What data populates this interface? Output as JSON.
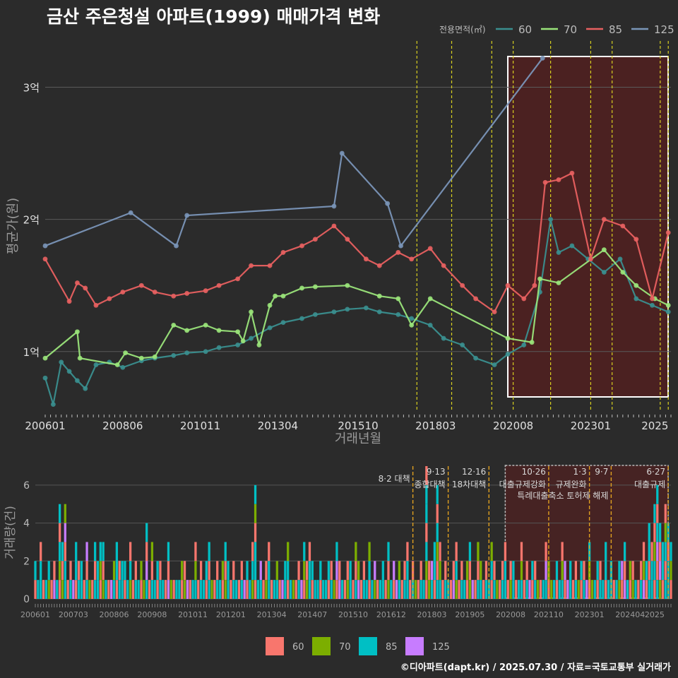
{
  "chart_data": [
    {
      "type": "line",
      "title": "금산 주은청설 아파트(1999) 매매가격 변화",
      "xlabel": "거래년월",
      "ylabel": "평균가(원)",
      "x_ticks": [
        "200601",
        "200806",
        "201011",
        "201304",
        "201510",
        "201803",
        "202008",
        "202301",
        "2025"
      ],
      "y_ticks": [
        "1억",
        "2억",
        "3억"
      ],
      "y_tick_values": [
        1.0,
        2.0,
        3.0
      ],
      "xlim": [
        "2006-01",
        "2025-07"
      ],
      "ylim": [
        0.55,
        3.35
      ],
      "y_unit": "억",
      "legend": {
        "title": "전용면적(㎡)",
        "position": "top-right",
        "entries": [
          "60",
          "70",
          "85",
          "125"
        ]
      },
      "series": [
        {
          "name": "60",
          "color": "#3a8f8f",
          "x": [
            "2006-01",
            "2006-04",
            "2006-07",
            "2006-10",
            "2007-01",
            "2007-04",
            "2007-08",
            "2008-01",
            "2008-06",
            "2009-01",
            "2009-06",
            "2010-01",
            "2010-06",
            "2011-01",
            "2011-06",
            "2012-01",
            "2012-06",
            "2013-01",
            "2013-06",
            "2014-01",
            "2014-06",
            "2015-01",
            "2015-06",
            "2016-01",
            "2016-06",
            "2017-01",
            "2017-06",
            "2018-01",
            "2018-06",
            "2019-01",
            "2019-06",
            "2020-01",
            "2020-06",
            "2020-12",
            "2021-06",
            "2021-10",
            "2022-01",
            "2022-06",
            "2022-12",
            "2023-06",
            "2023-12",
            "2024-06",
            "2024-12",
            "2025-06"
          ],
          "y": [
            0.8,
            0.6,
            0.92,
            0.85,
            0.78,
            0.72,
            0.9,
            0.92,
            0.88,
            0.93,
            0.95,
            0.97,
            0.99,
            1.0,
            1.03,
            1.05,
            1.1,
            1.18,
            1.22,
            1.25,
            1.28,
            1.3,
            1.32,
            1.33,
            1.3,
            1.28,
            1.25,
            1.2,
            1.1,
            1.05,
            0.95,
            0.9,
            0.98,
            1.05,
            1.45,
            2.0,
            1.75,
            1.8,
            1.7,
            1.6,
            1.7,
            1.4,
            1.35,
            1.3
          ]
        },
        {
          "name": "70",
          "color": "#9ae47a",
          "x": [
            "2006-01",
            "2007-01",
            "2007-02",
            "2008-04",
            "2008-07",
            "2009-01",
            "2009-06",
            "2010-01",
            "2010-06",
            "2011-01",
            "2011-06",
            "2012-01",
            "2012-03",
            "2012-06",
            "2012-09",
            "2013-01",
            "2013-03",
            "2013-06",
            "2014-01",
            "2014-06",
            "2015-06",
            "2016-06",
            "2017-01",
            "2017-06",
            "2018-01",
            "2020-06",
            "2021-03",
            "2021-06",
            "2022-01",
            "2023-06",
            "2024-01",
            "2024-06",
            "2025-01",
            "2025-06"
          ],
          "y": [
            0.95,
            1.15,
            0.95,
            0.9,
            0.99,
            0.95,
            0.96,
            1.2,
            1.16,
            1.2,
            1.16,
            1.15,
            1.08,
            1.3,
            1.05,
            1.35,
            1.42,
            1.42,
            1.48,
            1.49,
            1.5,
            1.42,
            1.4,
            1.2,
            1.4,
            1.1,
            1.07,
            1.55,
            1.52,
            1.77,
            1.6,
            1.5,
            1.4,
            1.35
          ]
        },
        {
          "name": "85",
          "color": "#e86060",
          "x": [
            "2006-01",
            "2006-10",
            "2007-01",
            "2007-04",
            "2007-08",
            "2008-01",
            "2008-06",
            "2009-01",
            "2009-06",
            "2010-01",
            "2010-06",
            "2011-01",
            "2011-06",
            "2012-01",
            "2012-06",
            "2013-01",
            "2013-06",
            "2014-01",
            "2014-06",
            "2015-01",
            "2015-06",
            "2016-01",
            "2016-06",
            "2017-01",
            "2017-06",
            "2018-01",
            "2018-06",
            "2019-01",
            "2019-06",
            "2020-01",
            "2020-06",
            "2020-12",
            "2021-04",
            "2021-08",
            "2022-01",
            "2022-06",
            "2023-01",
            "2023-06",
            "2024-01",
            "2024-06",
            "2024-12",
            "2025-06"
          ],
          "y": [
            1.7,
            1.38,
            1.52,
            1.48,
            1.35,
            1.4,
            1.45,
            1.5,
            1.45,
            1.42,
            1.44,
            1.46,
            1.5,
            1.55,
            1.65,
            1.65,
            1.75,
            1.8,
            1.85,
            1.95,
            1.85,
            1.7,
            1.65,
            1.75,
            1.7,
            1.78,
            1.65,
            1.5,
            1.4,
            1.3,
            1.5,
            1.4,
            1.5,
            2.28,
            2.3,
            2.35,
            1.7,
            2.0,
            1.95,
            1.85,
            1.4,
            1.9
          ]
        },
        {
          "name": "125",
          "color": "#7a95b8",
          "x": [
            "2006-01",
            "2008-09",
            "2010-02",
            "2010-06",
            "2015-01",
            "2015-04",
            "2016-09",
            "2017-02",
            "2021-07"
          ],
          "y": [
            1.8,
            2.05,
            1.8,
            2.03,
            2.1,
            2.5,
            2.12,
            1.8,
            3.22
          ]
        }
      ],
      "annotations": {
        "shade": {
          "start": "2020-06",
          "end": "2025-07"
        },
        "events": [
          "2017-08",
          "2018-09",
          "2019-12",
          "2020-08",
          "2021-10",
          "2023-01",
          "2023-09",
          "2025-03",
          "2025-06"
        ]
      }
    },
    {
      "type": "bar",
      "ylabel": "거래량(건)",
      "x_ticks": [
        "200601",
        "200703",
        "200806",
        "200908",
        "201011",
        "201201",
        "201304",
        "201407",
        "201510",
        "201612",
        "201803",
        "201905",
        "202008",
        "202110",
        "202301",
        "202404",
        "2025"
      ],
      "y_ticks": [
        "0",
        "2",
        "4",
        "6"
      ],
      "y_tick_values": [
        0,
        2,
        4,
        6
      ],
      "ylim": [
        0,
        7
      ],
      "legend": {
        "position": "bottom",
        "entries": [
          "60",
          "70",
          "85",
          "125"
        ]
      },
      "colors": {
        "60": "#f8766d",
        "70": "#7cae00",
        "85": "#00bfc4",
        "125": "#c77cff"
      },
      "event_labels": [
        {
          "date": "2017-08",
          "line1": "8·2 대책",
          "line2": ""
        },
        {
          "date": "2018-09",
          "line1": "9·13",
          "line2": "종합대책"
        },
        {
          "date": "2019-12",
          "line1": "12·16",
          "line2": "18차대책"
        },
        {
          "date": "2021-10",
          "line1": "10·26",
          "line2": "대출규제강화"
        },
        {
          "date": "2023-01",
          "line1": "1·3",
          "line2": "규제완화"
        },
        {
          "date": "2023-09",
          "line1": "9·7",
          "line2": "특례대출축소 토허제 해제"
        },
        {
          "date": "2025-06",
          "line1": "6·27",
          "line2": "대출규제"
        }
      ],
      "series_total": {
        "x_start": "2006-01",
        "monthly_counts": [
          2,
          1,
          3,
          1,
          1,
          2,
          1,
          2,
          1,
          5,
          3,
          5,
          1,
          2,
          1,
          3,
          2,
          2,
          1,
          3,
          1,
          1,
          3,
          2,
          3,
          3,
          1,
          1,
          1,
          2,
          3,
          2,
          2,
          2,
          1,
          3,
          1,
          2,
          1,
          2,
          1,
          4,
          1,
          3,
          1,
          2,
          2,
          1,
          1,
          3,
          1,
          1,
          1,
          1,
          2,
          2,
          1,
          1,
          1,
          3,
          1,
          2,
          1,
          2,
          3,
          1,
          1,
          2,
          1,
          2,
          3,
          2,
          1,
          2,
          1,
          1,
          2,
          1,
          2,
          1,
          3,
          6,
          1,
          2,
          1,
          2,
          3,
          1,
          1,
          2,
          1,
          1,
          2,
          3,
          1,
          1,
          1,
          2,
          1,
          3,
          2,
          3,
          2,
          1,
          1,
          2,
          1,
          1,
          2,
          2,
          1,
          3,
          2,
          1,
          1,
          2,
          2,
          1,
          3,
          2,
          1,
          2,
          1,
          3,
          1,
          2,
          1,
          1,
          2,
          1,
          3,
          1,
          2,
          1,
          2,
          1,
          2,
          3,
          1,
          2,
          1,
          1,
          2,
          1,
          7,
          2,
          2,
          3,
          6,
          3,
          1,
          2,
          1,
          1,
          2,
          3,
          1,
          2,
          1,
          2,
          3,
          1,
          1,
          3,
          2,
          1,
          2,
          1,
          3,
          2,
          1,
          1,
          2,
          3,
          1,
          2,
          2,
          1,
          1,
          3,
          1,
          2,
          1,
          2,
          2,
          1,
          1,
          1,
          3,
          2,
          1,
          1,
          2,
          1,
          3,
          2,
          1,
          2,
          1,
          2,
          1,
          2,
          2,
          1,
          3,
          1,
          1,
          2,
          2,
          1,
          3,
          1,
          2,
          1,
          1,
          2,
          2,
          3,
          1,
          2,
          2,
          1,
          1,
          2,
          3,
          2,
          4,
          3,
          5,
          6,
          4,
          3,
          5,
          4,
          3,
          6,
          2,
          4,
          3,
          5,
          3,
          2,
          4,
          3,
          1,
          2,
          3,
          1,
          1,
          2,
          1,
          2,
          1,
          1,
          2,
          1,
          1,
          2,
          1,
          2,
          3,
          1,
          1,
          2,
          1,
          3,
          1,
          1,
          2,
          1,
          3,
          2,
          1,
          3,
          5,
          2
        ]
      }
    }
  ],
  "footer": "©디아파트(dapt.kr) / 2025.07.30 / 자료=국토교통부 실거래가"
}
